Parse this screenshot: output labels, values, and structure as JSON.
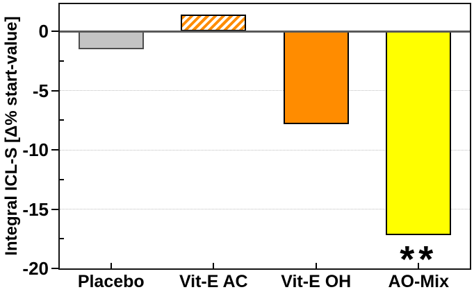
{
  "figure": {
    "background": "#ffffff"
  },
  "chart_data": {
    "type": "bar",
    "title": "",
    "xlabel": "",
    "ylabel": "Integral ICL-S [Δ% start-value]",
    "categories": [
      "Placebo",
      "Vit-E AC",
      "Vit-E OH",
      "AO-Mix"
    ],
    "values": [
      -1.5,
      1.4,
      -7.8,
      -17.2
    ],
    "ylim": [
      -20,
      2.3
    ],
    "yticks_major": [
      0,
      -5,
      -10,
      -15,
      -20
    ],
    "yticks_minor": [
      -2.5,
      -7.5,
      -12.5,
      -17.5
    ],
    "gridlines_y": [
      -5,
      -10,
      -15
    ],
    "grid_style": "dotted",
    "legend_position": "none",
    "bar_styles": [
      {
        "category": "Placebo",
        "fill": "#c4c4c4",
        "pattern": "solid",
        "hatch_bg": "",
        "border": "#4d4d4d"
      },
      {
        "category": "Vit-E AC",
        "fill": "#ff8c00",
        "pattern": "diagonal-hatch",
        "hatch_bg": "#ffffff",
        "border": "#000000"
      },
      {
        "category": "Vit-E OH",
        "fill": "#ff8c00",
        "pattern": "solid",
        "hatch_bg": "",
        "border": "#000000"
      },
      {
        "category": "AO-Mix",
        "fill": "#ffff00",
        "pattern": "solid",
        "hatch_bg": "",
        "border": "#000000"
      }
    ],
    "annotations": [
      {
        "text": "**",
        "category": "AO-Mix",
        "position": "below-bar"
      }
    ],
    "colors": {
      "frame": "#141414",
      "zero_line": "#595959",
      "grid": "#bdbdbd",
      "text": "#000000"
    }
  }
}
